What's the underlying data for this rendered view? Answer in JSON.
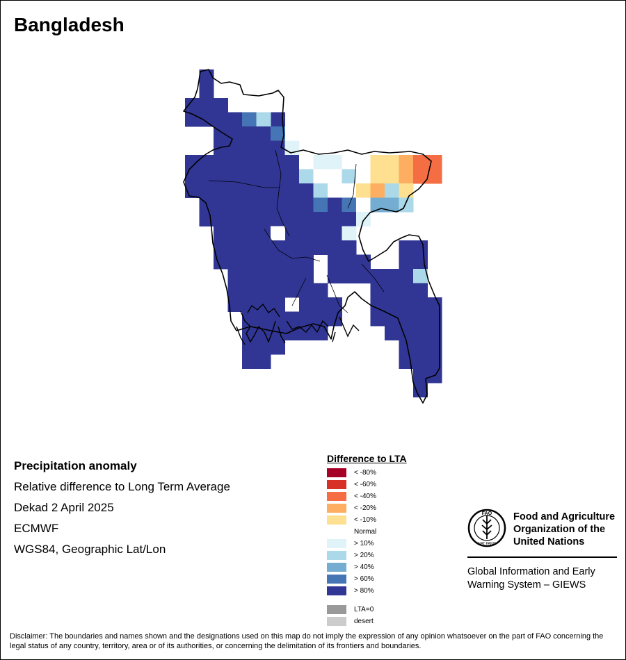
{
  "title": "Bangladesh",
  "info": {
    "line1": "Precipitation anomaly",
    "line2": "Relative difference to Long Term Average",
    "line3": "Dekad 2 April 2025",
    "line4": "ECMWF",
    "line5": "WGS84, Geographic Lat/Lon"
  },
  "legend": {
    "title": "Difference to LTA",
    "items": [
      {
        "label": "< -80%",
        "color": "#a50026"
      },
      {
        "label": "< -60%",
        "color": "#d73027"
      },
      {
        "label": "< -40%",
        "color": "#f46d43"
      },
      {
        "label": "< -20%",
        "color": "#fdae61"
      },
      {
        "label": "< -10%",
        "color": "#fee090"
      },
      {
        "label": "Normal",
        "color": "#ffffff"
      },
      {
        "label": "> 10%",
        "color": "#e0f3f8"
      },
      {
        "label": "> 20%",
        "color": "#abd9e9"
      },
      {
        "label": "> 40%",
        "color": "#74add1"
      },
      {
        "label": "> 60%",
        "color": "#4575b4"
      },
      {
        "label": "> 80%",
        "color": "#313695"
      }
    ],
    "extras": [
      {
        "label": "LTA=0",
        "color": "#999999"
      },
      {
        "label": "desert",
        "color": "#cccccc"
      }
    ]
  },
  "fao": {
    "name_line1": "Food and Agriculture",
    "name_line2": "Organization of the",
    "name_line3": "United Nations",
    "logo_letters": "FAO",
    "logo_motto": "FIAT PANIS",
    "giews_line1": "Global Information and Early",
    "giews_line2": "Warning System – GIEWS"
  },
  "disclaimer": "Disclaimer: The boundaries and names shown and the designations used on this map do not imply the expression of any opinion whatsoever on the part of FAO concerning the legal status of any country, territory, area or of its authorities, or concerning the delimitation of its frontiers and boundaries.",
  "map": {
    "anomaly_classes": [
      "> 80%",
      "> 60%",
      "> 40%",
      "> 20%",
      "> 10%",
      "Normal",
      "< -10%",
      "< -20%",
      "< -40%"
    ]
  }
}
